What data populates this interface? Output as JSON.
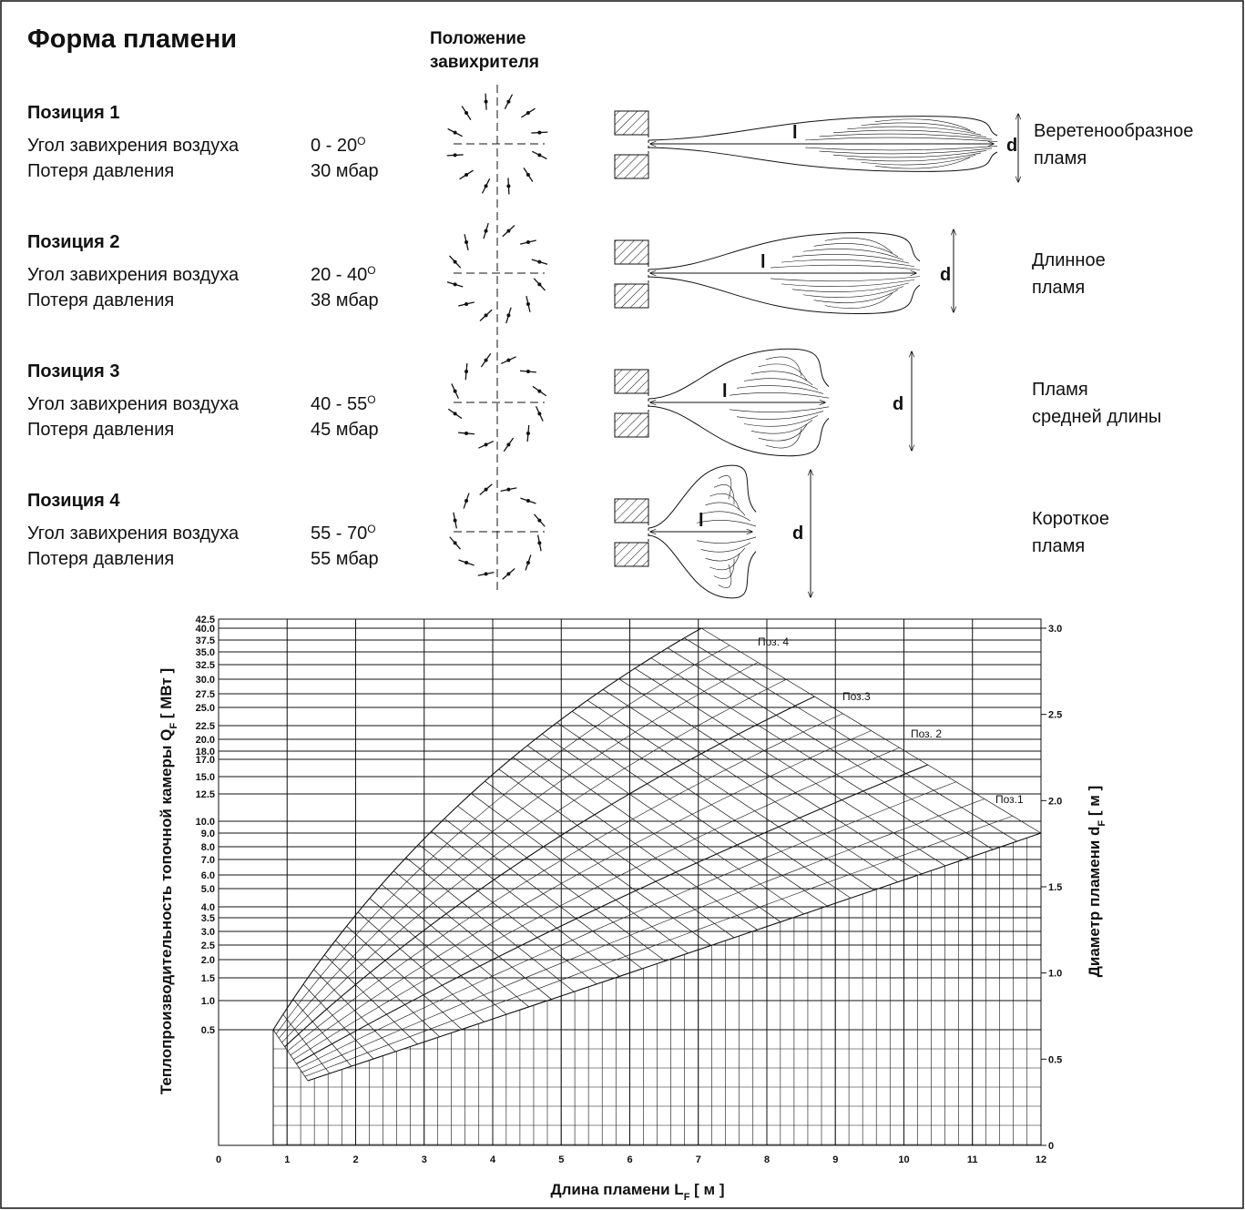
{
  "header": {
    "title": "Форма пламени",
    "swirler_heading": [
      "Положение",
      "завихрителя"
    ]
  },
  "positions": [
    {
      "name": "Позиция 1",
      "angle_label": "Угол завихрения воздуха",
      "angle": "0 - 20",
      "degree": "O",
      "loss_label": "Потеря давления",
      "loss": "30 мбар",
      "flame_length": "l",
      "flame_diameter": "d",
      "flame_type": [
        "Веретенообразное",
        "пламя"
      ]
    },
    {
      "name": "Позиция 2",
      "angle_label": "Угол завихрения воздуха",
      "angle": "20 - 40",
      "degree": "O",
      "loss_label": "Потеря давления",
      "loss": "38 мбар",
      "flame_length": "l",
      "flame_diameter": "d",
      "flame_type": [
        "Длинное",
        "пламя"
      ]
    },
    {
      "name": "Позиция 3",
      "angle_label": "Угол завихрения воздуха",
      "angle": "40 - 55",
      "degree": "O",
      "loss_label": "Потеря давления",
      "loss": "45 мбар",
      "flame_length": "l",
      "flame_diameter": "d",
      "flame_type": [
        "Пламя",
        "средней длины"
      ]
    },
    {
      "name": "Позиция 4",
      "angle_label": "Угол завихрения воздуха",
      "angle": "55 - 70",
      "degree": "O",
      "loss_label": "Потеря давления",
      "loss": "55 мбар",
      "flame_length": "l",
      "flame_diameter": "d",
      "flame_type": [
        "Короткое",
        "пламя"
      ]
    }
  ],
  "nomogram": {
    "y_label": {
      "text": "Теплопроизводительность топочной камеры Q",
      "sub": "F",
      "unit": " [ МВт ]"
    },
    "x_label": {
      "text": "Длина пламени L",
      "sub": "F",
      "unit": " [ м ]"
    },
    "y2_label": {
      "text": "Диаметр пламени d",
      "sub": "F",
      "unit": " [ м ]"
    },
    "y_ticks": [
      "42.5",
      "40.0",
      "37.5",
      "35.0",
      "32.5",
      "30.0",
      "27.5",
      "25.0",
      "22.5",
      "20.0",
      "18.0",
      "17.0",
      "15.0",
      "12.5",
      "10.0",
      "9.0",
      "8.0",
      "7.0",
      "6.0",
      "5.0",
      "4.0",
      "3.5",
      "3.0",
      "2.5",
      "2.0",
      "1.5",
      "1.0",
      "0.5"
    ],
    "x_ticks": [
      "0",
      "1",
      "2",
      "3",
      "4",
      "5",
      "6",
      "7",
      "8",
      "9",
      "10",
      "11",
      "12"
    ],
    "y2_ticks": [
      "3.0",
      "2.5",
      "2.0",
      "1.5",
      "1.0",
      "0.5",
      "0"
    ],
    "curve_labels": [
      "Поз. 4",
      "Поз.3",
      "Поз. 2",
      "Поз.1"
    ]
  }
}
